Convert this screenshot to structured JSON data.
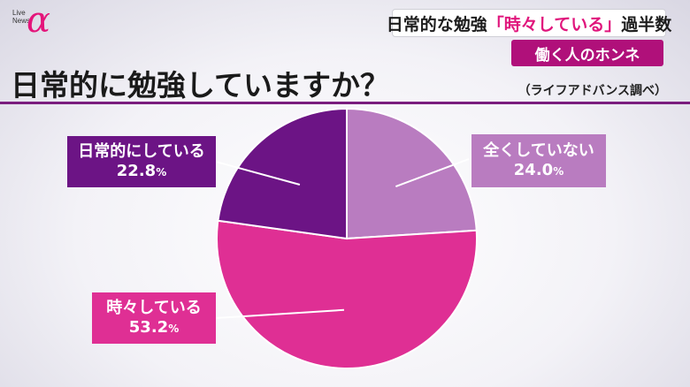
{
  "branding": {
    "logo_line1": "Live",
    "logo_line2": "News",
    "logo_mark": "α"
  },
  "topic": {
    "prefix": "日常的な勉強",
    "highlight": "「時々している」",
    "suffix": "過半数"
  },
  "subtopic": "働く人のホンネ",
  "title": "日常的に勉強していますか？",
  "source": "（ライフアドバンス調べ）",
  "colors": {
    "daily": "#6c1485",
    "none": "#b97cc0",
    "sometimes": "#df2f94",
    "accent": "#7a1d7e"
  },
  "chart_data": {
    "type": "pie",
    "title": "日常的に勉強していますか？",
    "slices": [
      {
        "key": "none",
        "label": "全くしていない",
        "value": 24.0,
        "display": "24.0",
        "color": "#b97cc0"
      },
      {
        "key": "sometimes",
        "label": "時々している",
        "value": 53.2,
        "display": "53.2",
        "color": "#df2f94"
      },
      {
        "key": "daily",
        "label": "日常的にしている",
        "value": 22.8,
        "display": "22.8",
        "color": "#6c1485"
      }
    ],
    "unit": "%",
    "start_angle_deg": 0,
    "direction": "clockwise"
  }
}
